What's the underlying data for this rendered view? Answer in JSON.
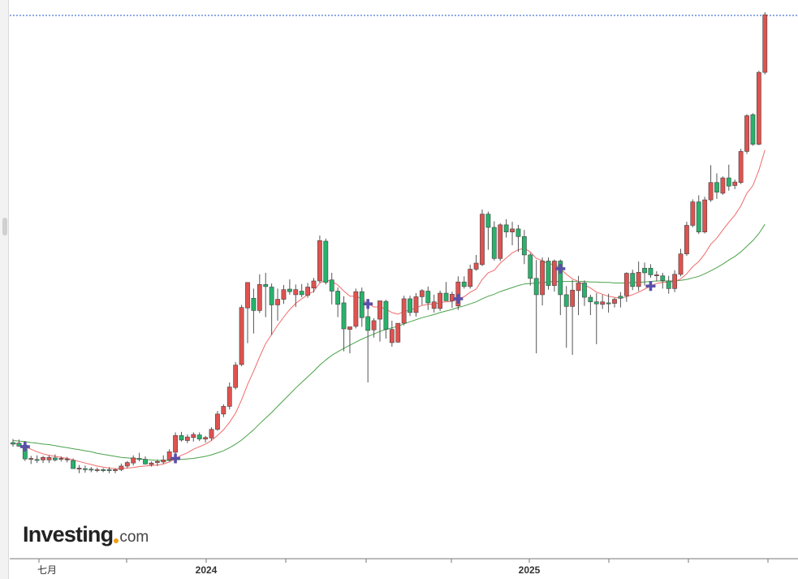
{
  "watermark": {
    "brand": "Investing",
    "suffix": "com"
  },
  "chart_data": {
    "type": "candlestick",
    "x_ticks": [
      "七月",
      "2024",
      "2025"
    ],
    "ylim": [
      0,
      100
    ],
    "colors": {
      "up": "#26b36b",
      "down": "#e0524f",
      "ma_fast": "#f06b6b",
      "ma_slow": "#4aa24a",
      "marker": "#5a50a8",
      "hline": "#2255cc"
    },
    "candles": [
      {
        "o": 15.6,
        "h": 16.3,
        "l": 14.8,
        "c": 15.3,
        "up": true
      },
      {
        "o": 15.5,
        "h": 16.2,
        "l": 14.8,
        "c": 14.9,
        "up": true
      },
      {
        "o": 15.1,
        "h": 15.9,
        "l": 12.0,
        "c": 12.4,
        "up": true
      },
      {
        "o": 12.3,
        "h": 13.0,
        "l": 11.4,
        "c": 12.5,
        "up": false
      },
      {
        "o": 12.1,
        "h": 13.1,
        "l": 11.6,
        "c": 12.3,
        "up": true
      },
      {
        "o": 12.2,
        "h": 13.0,
        "l": 11.6,
        "c": 12.7,
        "up": false
      },
      {
        "o": 12.2,
        "h": 13.1,
        "l": 11.6,
        "c": 12.7,
        "up": false
      },
      {
        "o": 12.6,
        "h": 13.3,
        "l": 11.9,
        "c": 12.2,
        "up": true
      },
      {
        "o": 12.4,
        "h": 12.9,
        "l": 11.9,
        "c": 12.5,
        "up": false
      },
      {
        "o": 12.4,
        "h": 12.8,
        "l": 11.7,
        "c": 12.3,
        "up": false
      },
      {
        "o": 12.1,
        "h": 12.5,
        "l": 11.4,
        "c": 10.5,
        "up": true
      },
      {
        "o": 10.6,
        "h": 11.2,
        "l": 9.6,
        "c": 10.4,
        "up": false
      },
      {
        "o": 10.5,
        "h": 11.1,
        "l": 9.7,
        "c": 10.3,
        "up": true
      },
      {
        "o": 10.4,
        "h": 10.8,
        "l": 9.8,
        "c": 10.3,
        "up": true
      },
      {
        "o": 10.3,
        "h": 10.7,
        "l": 9.8,
        "c": 10.2,
        "up": false
      },
      {
        "o": 10.3,
        "h": 10.6,
        "l": 9.8,
        "c": 10.1,
        "up": true
      },
      {
        "o": 10.3,
        "h": 10.8,
        "l": 9.6,
        "c": 10.1,
        "up": true
      },
      {
        "o": 10.1,
        "h": 10.6,
        "l": 9.6,
        "c": 10.3,
        "up": false
      },
      {
        "o": 10.3,
        "h": 11.5,
        "l": 10.0,
        "c": 11.0,
        "up": false
      },
      {
        "o": 11.0,
        "h": 12.0,
        "l": 10.6,
        "c": 11.7,
        "up": false
      },
      {
        "o": 11.6,
        "h": 13.1,
        "l": 11.1,
        "c": 12.6,
        "up": false
      },
      {
        "o": 12.5,
        "h": 13.6,
        "l": 11.9,
        "c": 12.3,
        "up": true
      },
      {
        "o": 12.3,
        "h": 12.9,
        "l": 11.3,
        "c": 11.4,
        "up": true
      },
      {
        "o": 11.3,
        "h": 11.9,
        "l": 10.9,
        "c": 11.6,
        "up": false
      },
      {
        "o": 11.7,
        "h": 12.3,
        "l": 11.0,
        "c": 11.9,
        "up": false
      },
      {
        "o": 11.8,
        "h": 13.1,
        "l": 11.4,
        "c": 12.2,
        "up": false
      },
      {
        "o": 12.2,
        "h": 14.3,
        "l": 11.9,
        "c": 13.8,
        "up": false
      },
      {
        "o": 13.7,
        "h": 17.6,
        "l": 13.4,
        "c": 17.0,
        "up": false
      },
      {
        "o": 17.0,
        "h": 17.7,
        "l": 15.8,
        "c": 16.1,
        "up": true
      },
      {
        "o": 16.0,
        "h": 17.2,
        "l": 15.5,
        "c": 16.7,
        "up": false
      },
      {
        "o": 16.6,
        "h": 17.6,
        "l": 15.8,
        "c": 17.2,
        "up": false
      },
      {
        "o": 17.1,
        "h": 17.6,
        "l": 15.9,
        "c": 16.3,
        "up": true
      },
      {
        "o": 16.3,
        "h": 16.9,
        "l": 15.6,
        "c": 16.6,
        "up": false
      },
      {
        "o": 16.5,
        "h": 18.6,
        "l": 16.0,
        "c": 18.2,
        "up": false
      },
      {
        "o": 18.2,
        "h": 21.8,
        "l": 17.9,
        "c": 21.2,
        "up": false
      },
      {
        "o": 21.2,
        "h": 23.1,
        "l": 20.6,
        "c": 22.7,
        "up": false
      },
      {
        "o": 22.7,
        "h": 27.4,
        "l": 22.1,
        "c": 26.5,
        "up": false
      },
      {
        "o": 26.4,
        "h": 31.4,
        "l": 26.0,
        "c": 30.8,
        "up": false
      },
      {
        "o": 30.9,
        "h": 42.6,
        "l": 30.6,
        "c": 42.1,
        "up": false
      },
      {
        "o": 42.0,
        "h": 47.0,
        "l": 35.1,
        "c": 47.0,
        "up": false
      },
      {
        "o": 43.9,
        "h": 45.8,
        "l": 37.0,
        "c": 41.5,
        "up": true
      },
      {
        "o": 41.5,
        "h": 48.6,
        "l": 41.0,
        "c": 46.6,
        "up": false
      },
      {
        "o": 46.6,
        "h": 48.9,
        "l": 40.2,
        "c": 46.2,
        "up": true
      },
      {
        "o": 46.1,
        "h": 46.8,
        "l": 36.7,
        "c": 42.6,
        "up": true
      },
      {
        "o": 42.6,
        "h": 45.8,
        "l": 39.5,
        "c": 43.7,
        "up": false
      },
      {
        "o": 43.7,
        "h": 46.5,
        "l": 42.8,
        "c": 45.6,
        "up": false
      },
      {
        "o": 45.7,
        "h": 47.6,
        "l": 44.6,
        "c": 45.2,
        "up": true
      },
      {
        "o": 44.6,
        "h": 46.6,
        "l": 42.2,
        "c": 45.6,
        "up": false
      },
      {
        "o": 45.3,
        "h": 46.7,
        "l": 44.1,
        "c": 44.6,
        "up": true
      },
      {
        "o": 44.5,
        "h": 46.9,
        "l": 44.0,
        "c": 46.1,
        "up": false
      },
      {
        "o": 45.9,
        "h": 47.9,
        "l": 45.0,
        "c": 47.3,
        "up": false
      },
      {
        "o": 47.3,
        "h": 56.2,
        "l": 46.9,
        "c": 55.2,
        "up": false
      },
      {
        "o": 55.1,
        "h": 55.6,
        "l": 46.6,
        "c": 47.0,
        "up": true
      },
      {
        "o": 47.5,
        "h": 48.9,
        "l": 42.7,
        "c": 45.3,
        "up": true
      },
      {
        "o": 45.3,
        "h": 46.0,
        "l": 40.2,
        "c": 42.7,
        "up": true
      },
      {
        "o": 43.0,
        "h": 44.3,
        "l": 33.5,
        "c": 37.9,
        "up": true
      },
      {
        "o": 37.8,
        "h": 38.3,
        "l": 33.1,
        "c": 38.3,
        "up": false
      },
      {
        "o": 38.4,
        "h": 45.8,
        "l": 38.0,
        "c": 45.2,
        "up": false
      },
      {
        "o": 45.2,
        "h": 46.0,
        "l": 38.3,
        "c": 40.1,
        "up": true
      },
      {
        "o": 40.3,
        "h": 43.4,
        "l": 27.4,
        "c": 37.6,
        "up": true
      },
      {
        "o": 37.7,
        "h": 40.0,
        "l": 36.2,
        "c": 39.5,
        "up": false
      },
      {
        "o": 39.8,
        "h": 42.9,
        "l": 35.4,
        "c": 43.4,
        "up": false
      },
      {
        "o": 43.3,
        "h": 43.6,
        "l": 36.0,
        "c": 37.8,
        "up": true
      },
      {
        "o": 37.8,
        "h": 39.5,
        "l": 34.4,
        "c": 35.2,
        "up": false
      },
      {
        "o": 35.3,
        "h": 39.0,
        "l": 35.2,
        "c": 39.0,
        "up": false
      },
      {
        "o": 39.0,
        "h": 44.4,
        "l": 38.6,
        "c": 43.8,
        "up": false
      },
      {
        "o": 43.8,
        "h": 44.4,
        "l": 40.4,
        "c": 41.1,
        "up": true
      },
      {
        "o": 41.1,
        "h": 44.9,
        "l": 40.3,
        "c": 44.2,
        "up": false
      },
      {
        "o": 44.2,
        "h": 45.7,
        "l": 42.6,
        "c": 45.4,
        "up": false
      },
      {
        "o": 45.3,
        "h": 46.2,
        "l": 41.6,
        "c": 43.0,
        "up": true
      },
      {
        "o": 43.2,
        "h": 44.6,
        "l": 41.1,
        "c": 41.9,
        "up": false
      },
      {
        "o": 41.9,
        "h": 45.4,
        "l": 41.4,
        "c": 44.9,
        "up": false
      },
      {
        "o": 44.9,
        "h": 47.1,
        "l": 44.1,
        "c": 43.4,
        "up": true
      },
      {
        "o": 43.4,
        "h": 45.2,
        "l": 42.0,
        "c": 44.7,
        "up": false
      },
      {
        "o": 42.4,
        "h": 48.2,
        "l": 41.6,
        "c": 47.1,
        "up": false
      },
      {
        "o": 47.1,
        "h": 48.2,
        "l": 45.8,
        "c": 46.2,
        "up": true
      },
      {
        "o": 46.2,
        "h": 50.5,
        "l": 45.8,
        "c": 49.6,
        "up": false
      },
      {
        "o": 49.6,
        "h": 52.4,
        "l": 49.3,
        "c": 50.8,
        "up": false
      },
      {
        "o": 50.5,
        "h": 61.3,
        "l": 50.2,
        "c": 60.4,
        "up": false
      },
      {
        "o": 60.4,
        "h": 60.9,
        "l": 53.4,
        "c": 57.8,
        "up": true
      },
      {
        "o": 57.8,
        "h": 59.0,
        "l": 51.3,
        "c": 51.7,
        "up": true
      },
      {
        "o": 51.7,
        "h": 58.6,
        "l": 51.2,
        "c": 58.3,
        "up": false
      },
      {
        "o": 58.3,
        "h": 59.4,
        "l": 55.8,
        "c": 56.9,
        "up": true
      },
      {
        "o": 56.9,
        "h": 58.9,
        "l": 54.3,
        "c": 57.5,
        "up": false
      },
      {
        "o": 57.5,
        "h": 58.3,
        "l": 53.0,
        "c": 56.0,
        "up": true
      },
      {
        "o": 56.0,
        "h": 57.3,
        "l": 50.6,
        "c": 52.4,
        "up": true
      },
      {
        "o": 52.4,
        "h": 52.8,
        "l": 46.4,
        "c": 47.8,
        "up": true
      },
      {
        "o": 47.8,
        "h": 51.4,
        "l": 33.1,
        "c": 44.6,
        "up": true
      },
      {
        "o": 44.6,
        "h": 51.9,
        "l": 42.5,
        "c": 51.2,
        "up": false
      },
      {
        "o": 51.2,
        "h": 51.9,
        "l": 45.6,
        "c": 46.4,
        "up": true
      },
      {
        "o": 46.4,
        "h": 51.5,
        "l": 45.2,
        "c": 51.2,
        "up": false
      },
      {
        "o": 51.2,
        "h": 51.5,
        "l": 40.6,
        "c": 44.6,
        "up": true
      },
      {
        "o": 44.6,
        "h": 46.3,
        "l": 34.2,
        "c": 42.3,
        "up": true
      },
      {
        "o": 42.3,
        "h": 47.5,
        "l": 32.8,
        "c": 45.5,
        "up": false
      },
      {
        "o": 45.4,
        "h": 48.3,
        "l": 40.6,
        "c": 46.9,
        "up": false
      },
      {
        "o": 46.9,
        "h": 47.4,
        "l": 42.4,
        "c": 44.1,
        "up": true
      },
      {
        "o": 44.1,
        "h": 44.6,
        "l": 40.6,
        "c": 43.2,
        "up": true
      },
      {
        "o": 43.2,
        "h": 44.9,
        "l": 34.9,
        "c": 42.8,
        "up": true
      },
      {
        "o": 42.7,
        "h": 44.6,
        "l": 41.8,
        "c": 43.2,
        "up": false
      },
      {
        "o": 43.0,
        "h": 44.8,
        "l": 41.1,
        "c": 42.9,
        "up": true
      },
      {
        "o": 42.9,
        "h": 44.0,
        "l": 42.1,
        "c": 43.7,
        "up": false
      },
      {
        "o": 43.9,
        "h": 45.1,
        "l": 42.1,
        "c": 44.3,
        "up": true
      },
      {
        "o": 44.4,
        "h": 49.0,
        "l": 43.2,
        "c": 48.8,
        "up": false
      },
      {
        "o": 48.8,
        "h": 49.5,
        "l": 45.5,
        "c": 46.2,
        "up": true
      },
      {
        "o": 46.2,
        "h": 51.1,
        "l": 45.3,
        "c": 49.0,
        "up": false
      },
      {
        "o": 48.9,
        "h": 50.9,
        "l": 46.4,
        "c": 49.8,
        "up": true
      },
      {
        "o": 49.8,
        "h": 50.6,
        "l": 47.9,
        "c": 48.5,
        "up": true
      },
      {
        "o": 48.5,
        "h": 49.2,
        "l": 47.2,
        "c": 48.3,
        "up": false
      },
      {
        "o": 48.3,
        "h": 48.9,
        "l": 45.8,
        "c": 47.4,
        "up": true
      },
      {
        "o": 47.3,
        "h": 48.3,
        "l": 44.8,
        "c": 45.8,
        "up": true
      },
      {
        "o": 45.8,
        "h": 49.4,
        "l": 45.1,
        "c": 48.6,
        "up": false
      },
      {
        "o": 48.6,
        "h": 53.6,
        "l": 48.2,
        "c": 52.6,
        "up": false
      },
      {
        "o": 52.6,
        "h": 58.9,
        "l": 52.2,
        "c": 58.2,
        "up": false
      },
      {
        "o": 58.2,
        "h": 63.3,
        "l": 57.8,
        "c": 62.8,
        "up": false
      },
      {
        "o": 62.8,
        "h": 64.1,
        "l": 56.5,
        "c": 56.9,
        "up": true
      },
      {
        "o": 56.9,
        "h": 63.8,
        "l": 56.6,
        "c": 63.2,
        "up": false
      },
      {
        "o": 63.2,
        "h": 70.0,
        "l": 62.8,
        "c": 66.6,
        "up": false
      },
      {
        "o": 66.6,
        "h": 68.4,
        "l": 63.4,
        "c": 64.7,
        "up": true
      },
      {
        "o": 64.5,
        "h": 67.8,
        "l": 64.2,
        "c": 67.5,
        "up": false
      },
      {
        "o": 67.5,
        "h": 70.1,
        "l": 65.0,
        "c": 65.9,
        "up": true
      },
      {
        "o": 66.0,
        "h": 67.2,
        "l": 65.3,
        "c": 66.7,
        "up": false
      },
      {
        "o": 66.6,
        "h": 73.2,
        "l": 66.3,
        "c": 72.7,
        "up": false
      },
      {
        "o": 72.7,
        "h": 80.0,
        "l": 72.2,
        "c": 79.7,
        "up": false
      },
      {
        "o": 79.9,
        "h": 80.2,
        "l": 73.8,
        "c": 74.1,
        "up": true
      },
      {
        "o": 74.1,
        "h": 88.5,
        "l": 73.9,
        "c": 88.2,
        "up": false
      },
      {
        "o": 88.2,
        "h": 100.0,
        "l": 87.8,
        "c": 99.5,
        "up": false
      }
    ],
    "ma_fast": [
      15.5,
      15.3,
      14.8,
      14.3,
      13.8,
      13.4,
      13.1,
      12.9,
      12.7,
      12.5,
      12.2,
      11.9,
      11.6,
      11.3,
      11.0,
      10.8,
      10.6,
      10.5,
      10.5,
      10.6,
      10.7,
      10.9,
      11.0,
      11.1,
      11.2,
      11.4,
      11.8,
      12.5,
      13.1,
      13.6,
      14.3,
      14.8,
      15.3,
      16.0,
      17.0,
      18.1,
      19.6,
      21.4,
      24.0,
      27.0,
      29.6,
      32.4,
      35.0,
      36.8,
      38.6,
      40.2,
      41.7,
      42.9,
      43.8,
      44.6,
      45.3,
      46.9,
      47.5,
      47.2,
      46.5,
      45.3,
      44.3,
      44.3,
      43.8,
      42.8,
      42.2,
      42.2,
      41.8,
      41.1,
      40.8,
      41.3,
      41.6,
      42.0,
      42.5,
      42.7,
      42.7,
      43.1,
      43.2,
      43.3,
      43.8,
      44.2,
      45.1,
      45.7,
      47.6,
      48.9,
      49.4,
      50.8,
      51.8,
      52.8,
      53.4,
      53.7,
      53.0,
      51.7,
      51.3,
      50.6,
      50.6,
      49.7,
      48.6,
      47.7,
      47.2,
      46.5,
      45.9,
      45.1,
      44.7,
      44.3,
      44.1,
      43.9,
      44.2,
      44.6,
      45.1,
      45.7,
      46.3,
      46.8,
      47.0,
      47.1,
      47.2,
      47.7,
      48.7,
      50.1,
      51.1,
      52.6,
      54.5,
      55.7,
      57.3,
      58.8,
      60.2,
      62.0,
      64.5,
      66.0,
      69.0,
      73.0
    ],
    "ma_slow": [
      16.0,
      15.9,
      15.8,
      15.6,
      15.5,
      15.3,
      15.2,
      15.0,
      14.8,
      14.6,
      14.4,
      14.2,
      14.0,
      13.8,
      13.5,
      13.3,
      13.1,
      12.9,
      12.7,
      12.6,
      12.5,
      12.4,
      12.3,
      12.2,
      12.1,
      12.1,
      12.1,
      12.2,
      12.3,
      12.4,
      12.5,
      12.7,
      12.9,
      13.2,
      13.6,
      14.0,
      14.6,
      15.3,
      16.1,
      17.1,
      18.1,
      19.3,
      20.4,
      21.5,
      22.7,
      23.9,
      25.1,
      26.3,
      27.4,
      28.5,
      29.6,
      30.8,
      31.8,
      32.7,
      33.4,
      34.1,
      34.7,
      35.3,
      35.9,
      36.4,
      36.9,
      37.4,
      37.8,
      38.1,
      38.4,
      38.9,
      39.3,
      39.7,
      40.1,
      40.4,
      40.7,
      41.1,
      41.4,
      41.7,
      42.1,
      42.4,
      42.8,
      43.2,
      43.8,
      44.3,
      44.7,
      45.2,
      45.6,
      46.0,
      46.4,
      46.7,
      46.8,
      46.9,
      47.0,
      47.1,
      47.2,
      47.2,
      47.2,
      47.2,
      47.2,
      47.2,
      47.1,
      47.1,
      47.0,
      47.0,
      46.9,
      46.9,
      46.9,
      47.0,
      47.0,
      47.1,
      47.2,
      47.3,
      47.3,
      47.3,
      47.3,
      47.4,
      47.6,
      47.9,
      48.2,
      48.7,
      49.3,
      49.9,
      50.6,
      51.4,
      52.1,
      53.0,
      54.1,
      55.2,
      56.6,
      58.4
    ],
    "markers": [
      2,
      27,
      59,
      74,
      91,
      106
    ]
  }
}
